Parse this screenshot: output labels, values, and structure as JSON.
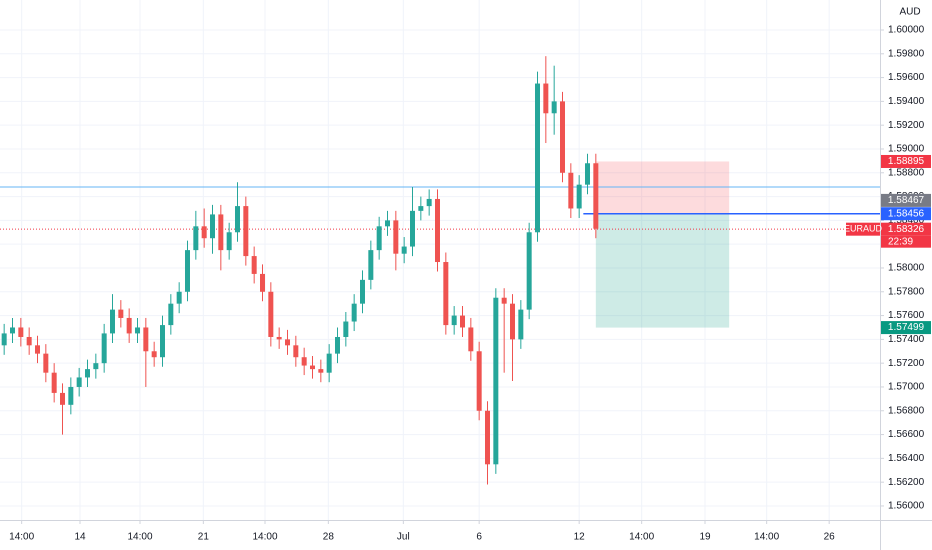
{
  "chart_data": {
    "type": "candlestick",
    "currency": "AUD",
    "up_color": "#26a69a",
    "down_color": "#ef5350",
    "grid": true,
    "xlim": [
      -0.5,
      105.1
    ],
    "xticks": [
      {
        "value": 2.1,
        "label": "14:00"
      },
      {
        "value": 9.1,
        "label": "14"
      },
      {
        "value": 16.3,
        "label": "14:00"
      },
      {
        "value": 23.9,
        "label": "21"
      },
      {
        "value": 31.3,
        "label": "14:00"
      },
      {
        "value": 38.9,
        "label": "28"
      },
      {
        "value": 47.9,
        "label": "Jul"
      },
      {
        "value": 57.0,
        "label": "6"
      },
      {
        "value": 69.0,
        "label": "12"
      },
      {
        "value": 76.5,
        "label": "14:00"
      },
      {
        "value": 84.1,
        "label": "19"
      },
      {
        "value": 91.5,
        "label": "14:00"
      },
      {
        "value": 99.0,
        "label": "26"
      }
    ],
    "ylim": [
      1.55882,
      1.60252
    ],
    "yticks": [
      {
        "value": 1.56,
        "label": "1.56000"
      },
      {
        "value": 1.562,
        "label": "1.56200"
      },
      {
        "value": 1.564,
        "label": "1.56400"
      },
      {
        "value": 1.566,
        "label": "1.56600"
      },
      {
        "value": 1.568,
        "label": "1.56800"
      },
      {
        "value": 1.57,
        "label": "1.57000"
      },
      {
        "value": 1.572,
        "label": "1.57200"
      },
      {
        "value": 1.574,
        "label": "1.57400"
      },
      {
        "value": 1.576,
        "label": "1.57600"
      },
      {
        "value": 1.578,
        "label": "1.57800"
      },
      {
        "value": 1.58,
        "label": "1.58000"
      },
      {
        "value": 1.582,
        "label": "1.58200"
      },
      {
        "value": 1.584,
        "label": "1.58400"
      },
      {
        "value": 1.586,
        "label": "1.58600"
      },
      {
        "value": 1.588,
        "label": "1.58800"
      },
      {
        "value": 1.59,
        "label": "1.59000"
      },
      {
        "value": 1.592,
        "label": "1.59200"
      },
      {
        "value": 1.594,
        "label": "1.59400"
      },
      {
        "value": 1.596,
        "label": "1.59600"
      },
      {
        "value": 1.598,
        "label": "1.59800"
      },
      {
        "value": 1.6,
        "label": "1.60000"
      }
    ],
    "open": [
      1.5735,
      1.5745,
      1.575,
      1.5742,
      1.5735,
      1.5728,
      1.5712,
      1.5695,
      1.5685,
      1.57,
      1.5708,
      1.5715,
      1.572,
      1.5745,
      1.5765,
      1.5758,
      1.5745,
      1.575,
      1.573,
      1.5725,
      1.5752,
      1.577,
      1.578,
      1.5815,
      1.5835,
      1.5825,
      1.5845,
      1.5815,
      1.583,
      1.5852,
      1.581,
      1.5795,
      1.578,
      1.5742,
      1.574,
      1.5735,
      1.5725,
      1.5718,
      1.5715,
      1.5712,
      1.5728,
      1.5742,
      1.5755,
      1.577,
      1.579,
      1.5815,
      1.5835,
      1.584,
      1.5812,
      1.5818,
      1.5848,
      1.5852,
      1.5858,
      1.5805,
      1.5752,
      1.576,
      1.575,
      1.573,
      1.568,
      1.5635,
      1.5775,
      1.577,
      1.574,
      1.5765,
      1.583,
      1.5955,
      1.593,
      1.594,
      1.588,
      1.585,
      1.587,
      1.5888
    ],
    "high": [
      1.5753,
      1.5758,
      1.5758,
      1.575,
      1.5743,
      1.5736,
      1.572,
      1.5703,
      1.5708,
      1.5716,
      1.5723,
      1.5728,
      1.5753,
      1.5778,
      1.5773,
      1.5766,
      1.5758,
      1.5758,
      1.5738,
      1.576,
      1.5778,
      1.5788,
      1.5823,
      1.5848,
      1.585,
      1.5853,
      1.5853,
      1.5838,
      1.5872,
      1.586,
      1.5818,
      1.5803,
      1.5788,
      1.575,
      1.5748,
      1.5743,
      1.5733,
      1.5726,
      1.5723,
      1.5736,
      1.575,
      1.5763,
      1.5778,
      1.5798,
      1.5823,
      1.5843,
      1.5848,
      1.5848,
      1.5826,
      1.5868,
      1.586,
      1.5866,
      1.5866,
      1.5813,
      1.5768,
      1.5768,
      1.5758,
      1.5738,
      1.5688,
      1.5783,
      1.5783,
      1.5778,
      1.5773,
      1.5838,
      1.5965,
      1.5978,
      1.597,
      1.5948,
      1.5888,
      1.5878,
      1.5896,
      1.5896
    ],
    "low": [
      1.5727,
      1.5737,
      1.5734,
      1.5727,
      1.572,
      1.5704,
      1.5687,
      1.566,
      1.5677,
      1.5692,
      1.57,
      1.5707,
      1.5712,
      1.5737,
      1.575,
      1.5737,
      1.5737,
      1.57,
      1.5717,
      1.5717,
      1.5744,
      1.5762,
      1.5772,
      1.5807,
      1.5817,
      1.5812,
      1.5798,
      1.5807,
      1.5822,
      1.5802,
      1.5787,
      1.5772,
      1.5734,
      1.5732,
      1.5727,
      1.5717,
      1.571,
      1.5707,
      1.5704,
      1.5704,
      1.572,
      1.5734,
      1.5747,
      1.5762,
      1.5782,
      1.5807,
      1.5827,
      1.5798,
      1.5804,
      1.581,
      1.584,
      1.5844,
      1.5797,
      1.5744,
      1.5744,
      1.5742,
      1.5722,
      1.5672,
      1.5618,
      1.5627,
      1.5712,
      1.5705,
      1.5732,
      1.5757,
      1.5822,
      1.5905,
      1.5912,
      1.5872,
      1.5842,
      1.5842,
      1.5862,
      1.5825
    ],
    "close": [
      1.5745,
      1.575,
      1.5742,
      1.5735,
      1.5728,
      1.5712,
      1.5695,
      1.5685,
      1.57,
      1.5708,
      1.5715,
      1.572,
      1.5745,
      1.5765,
      1.5758,
      1.5745,
      1.575,
      1.573,
      1.5725,
      1.5752,
      1.577,
      1.578,
      1.5815,
      1.5835,
      1.5825,
      1.5845,
      1.5815,
      1.583,
      1.5852,
      1.581,
      1.5795,
      1.578,
      1.5742,
      1.574,
      1.5735,
      1.5725,
      1.5718,
      1.5715,
      1.5712,
      1.5728,
      1.5742,
      1.5755,
      1.577,
      1.579,
      1.5815,
      1.5835,
      1.584,
      1.5812,
      1.5818,
      1.5848,
      1.5852,
      1.5858,
      1.5805,
      1.5752,
      1.576,
      1.575,
      1.573,
      1.568,
      1.5635,
      1.5775,
      1.577,
      1.574,
      1.5765,
      1.583,
      1.5955,
      1.593,
      1.594,
      1.588,
      1.585,
      1.587,
      1.5888,
      1.5833
    ],
    "horizontal_lines": [
      {
        "value": 1.5868,
        "color": "#64b5f6"
      }
    ],
    "position": {
      "x": [
        71,
        87
      ],
      "stop": 1.58895,
      "entry": 1.58456,
      "target": 1.57499,
      "stop_color": "#f23645",
      "entry_color": "#2962ff",
      "target_color": "#089981"
    },
    "extra_labels": [
      {
        "value": 1.58467,
        "color": "#787b86"
      }
    ],
    "current_price": {
      "symbol": "EURAUD",
      "value": 1.58326,
      "countdown": "22:39",
      "color": "#f23645"
    }
  }
}
